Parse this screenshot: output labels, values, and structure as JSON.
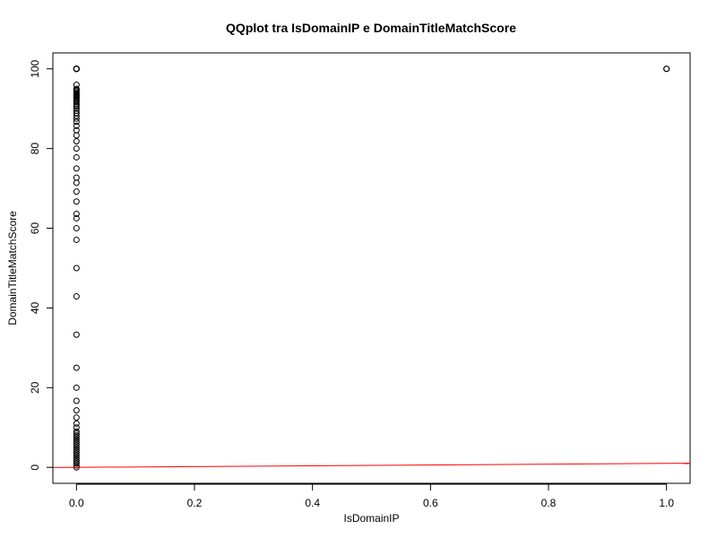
{
  "chart_data": {
    "type": "scatter",
    "title": "QQplot tra IsDomainIP e DomainTitleMatchScore",
    "xlabel": "IsDomainIP",
    "ylabel": "DomainTitleMatchScore",
    "xlim": [
      -0.04,
      1.04
    ],
    "ylim": [
      -4,
      104
    ],
    "xticks": [
      0,
      0.2,
      0.4,
      0.6,
      0.8,
      1
    ],
    "xtick_labels": [
      "0.0",
      "0.2",
      "0.4",
      "0.6",
      "0.8",
      "1.0"
    ],
    "yticks": [
      0,
      20,
      40,
      60,
      80,
      100
    ],
    "ytick_labels": [
      "0",
      "20",
      "40",
      "60",
      "80",
      "100"
    ],
    "grid": false,
    "marker": "open-circle",
    "point_color": "#000000",
    "series": [
      {
        "x": [
          0,
          0,
          0,
          0,
          0,
          0,
          0,
          0,
          0,
          0,
          0,
          0,
          0,
          0,
          0,
          0,
          0,
          0,
          0,
          0,
          0,
          0,
          0,
          0,
          0,
          0,
          0,
          0,
          0,
          0,
          0,
          0,
          0,
          0,
          0,
          0,
          0,
          0,
          0,
          0,
          0,
          0,
          0,
          0,
          0,
          0,
          0,
          0,
          0,
          0,
          0,
          0,
          0,
          0,
          0,
          0,
          0,
          0,
          0,
          0,
          0,
          0,
          0,
          0,
          0,
          0,
          0,
          0,
          0,
          0,
          0,
          0,
          0,
          0,
          0,
          0,
          1,
          1
        ],
        "y": [
          0,
          0.5,
          1,
          1.5,
          2,
          2.5,
          3,
          3.5,
          4,
          4.5,
          5,
          5.5,
          6,
          6.5,
          7,
          7.5,
          8,
          8.5,
          9,
          10,
          11,
          12.5,
          14.3,
          16.7,
          20,
          25,
          33.3,
          42.9,
          50,
          57.1,
          60,
          62.5,
          63.6,
          66.7,
          69.2,
          71.4,
          72.7,
          75,
          77.8,
          80,
          81.8,
          83.3,
          84.6,
          85.7,
          86.7,
          87.5,
          88.2,
          88.9,
          89.5,
          90,
          90.5,
          90.9,
          91.3,
          91.7,
          92,
          92.3,
          92.6,
          92.9,
          93.1,
          93.3,
          93.5,
          93.8,
          94.1,
          94.4,
          94.7,
          95,
          96,
          100,
          100,
          100,
          100,
          100,
          100,
          100,
          100,
          100,
          100,
          100
        ]
      }
    ],
    "reference_line": {
      "color": "#ff0000",
      "points": [
        [
          -0.04,
          -0.04
        ],
        [
          1.04,
          1.04
        ]
      ]
    }
  }
}
